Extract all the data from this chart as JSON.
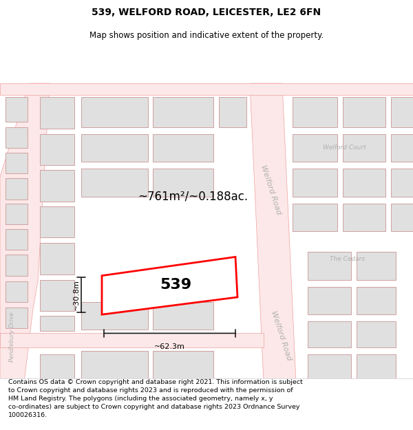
{
  "title": "539, WELFORD ROAD, LEICESTER, LE2 6FN",
  "subtitle": "Map shows position and indicative extent of the property.",
  "footer": "Contains OS data © Crown copyright and database right 2021. This information is subject\nto Crown copyright and database rights 2023 and is reproduced with the permission of\nHM Land Registry. The polygons (including the associated geometry, namely x, y\nco-ordinates) are subject to Crown copyright and database rights 2023 Ordnance Survey\n100026316.",
  "area_label": "~761m²/~0.188ac.",
  "width_label": "~62.3m",
  "height_label": "~30.8m",
  "property_number": "539",
  "background_color": "#ffffff",
  "road_fill_color": "#fce8e8",
  "road_line_color": "#f0a0a0",
  "building_color": "#e0e0e0",
  "building_edge_color": "#d0a0a0",
  "highlight_color": "#ff0000",
  "road_label_color": "#b0b0b0",
  "dim_line_color": "#1a1a1a",
  "title_fontsize": 10,
  "subtitle_fontsize": 8.5,
  "footer_fontsize": 6.8
}
